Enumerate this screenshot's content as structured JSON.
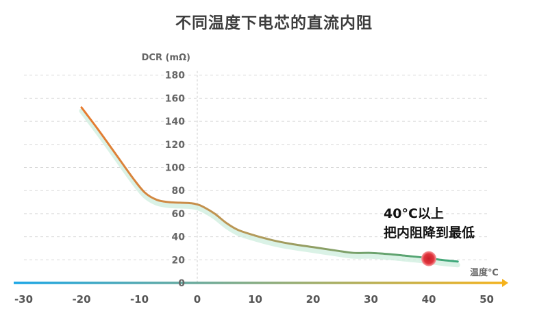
{
  "chart_data": {
    "type": "line",
    "title": "不同温度下电芯的直流内阻",
    "ylabel": "DCR (mΩ)",
    "xlabel": "温度℃",
    "xlim": [
      -30,
      50
    ],
    "ylim": [
      0,
      180
    ],
    "x_ticks": [
      "-30",
      "-20",
      "-10",
      "0",
      "10",
      "20",
      "30",
      "40",
      "50"
    ],
    "y_ticks": [
      "0",
      "20",
      "40",
      "60",
      "80",
      "100",
      "120",
      "140",
      "160",
      "180"
    ],
    "grid": true,
    "series": [
      {
        "x": [
          -20,
          -17,
          -14,
          -11,
          -9,
          -7,
          -5,
          -3,
          -1,
          0,
          1,
          3,
          5,
          7,
          10,
          13,
          16,
          20,
          24,
          27,
          30,
          33,
          36,
          40,
          42,
          45
        ],
        "values": [
          152,
          132,
          111,
          90,
          78,
          72,
          70,
          69.5,
          69,
          68,
          66,
          60,
          52,
          46,
          41,
          37,
          34,
          31,
          28,
          26,
          26,
          25,
          23.5,
          21.5,
          20,
          18.5
        ]
      }
    ],
    "highlight_point": {
      "x": 40,
      "y": 21
    },
    "annotation": {
      "line1": "40°C以上",
      "line2": "把内阻降到最低"
    },
    "colors": {
      "line_start": "#e87a2e",
      "line_mid": "#b59a5a",
      "line_end": "#3aa87a",
      "shadow": "#cdeedd",
      "marker": "#e0343c",
      "x_axis_start": "#1aa6e6",
      "x_axis_end": "#f5b21c",
      "grid": "#d8d8d8",
      "y_axis": "#cccccc"
    }
  }
}
